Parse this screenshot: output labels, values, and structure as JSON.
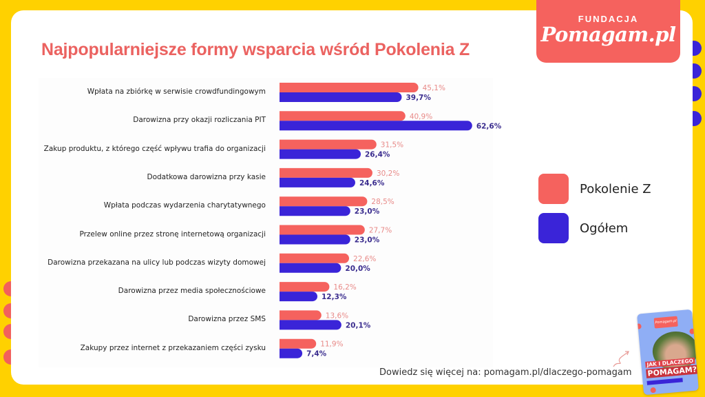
{
  "logo": {
    "top_text": "FUNDACJA",
    "main_text": "Pomagam.pl"
  },
  "colors": {
    "background": "#FFD100",
    "series_gen_z": "#F5625E",
    "series_overall": "#3A24D8",
    "title": "#EB6260",
    "label_gen_z": "#E88A88",
    "label_overall": "#3A2C8E"
  },
  "chart_data": {
    "type": "bar",
    "orientation": "horizontal",
    "title": "Najpopularniejsze formy wsparcia wśród Pokolenia Z",
    "xlabel": "",
    "ylabel": "",
    "xlim": [
      0,
      70
    ],
    "grid": false,
    "legend_position": "right",
    "value_suffix": "%",
    "decimal_separator": ",",
    "categories": [
      "Wpłata na zbiórkę w serwisie crowdfundingowym",
      "Darowizna przy okazji rozliczania PIT",
      "Zakup produktu, z którego część wpływu trafia do organizacji",
      "Dodatkowa darowizna przy kasie",
      "Wpłata podczas wydarzenia charytatywnego",
      "Przelew online przez stronę internetową organizacji",
      "Darowizna przekazana na ulicy lub podczas wizyty domowej",
      "Darowizna przez media społecznościowe",
      "Darowizna przez SMS",
      "Zakupy przez internet z przekazaniem części zysku"
    ],
    "series": [
      {
        "name": "Pokolenie Z",
        "values": [
          45.1,
          40.9,
          31.5,
          30.2,
          28.5,
          27.7,
          22.6,
          16.2,
          13.6,
          11.9
        ],
        "labels": [
          "45,1%",
          "40,9%",
          "31,5%",
          "30,2%",
          "28,5%",
          "27,7%",
          "22,6%",
          "16,2%",
          "13,6%",
          "11,9%"
        ]
      },
      {
        "name": "Ogółem",
        "values": [
          39.7,
          62.6,
          26.4,
          24.6,
          23.0,
          23.0,
          20.0,
          12.3,
          20.1,
          7.4
        ],
        "labels": [
          "39,7%",
          "62,6%",
          "26,4%",
          "24,6%",
          "23,0%",
          "23,0%",
          "20,0%",
          "12,3%",
          "20,1%",
          "7,4%"
        ]
      }
    ]
  },
  "legend": [
    {
      "label": "Pokolenie Z"
    },
    {
      "label": "Ogółem"
    }
  ],
  "footer": {
    "text": "Dowiedz się więcej na: pomagam.pl/dlaczego-pomagam"
  },
  "booklet": {
    "logo_text": "Pomagam.pl",
    "line1": "JAK I DLACZEGO",
    "line2": "POMAGAM?"
  }
}
